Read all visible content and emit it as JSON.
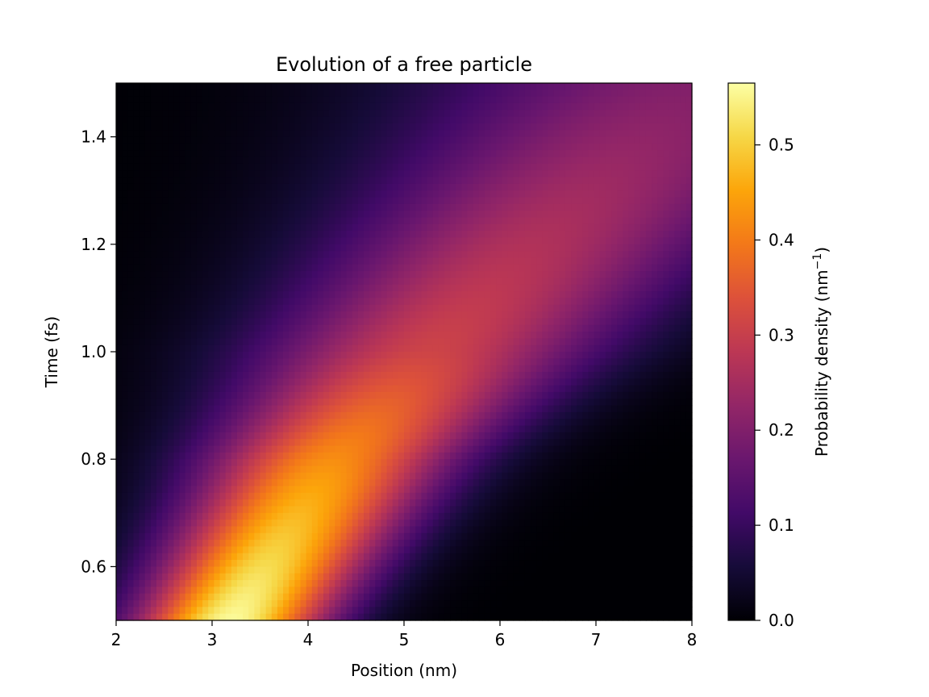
{
  "chart_data": {
    "type": "heatmap",
    "title": "Evolution of a free particle",
    "xlabel": "Position (nm)",
    "ylabel": "Time (fs)",
    "xlim": [
      2,
      8
    ],
    "ylim": [
      0.5,
      1.5
    ],
    "xticks": [
      2,
      3,
      4,
      5,
      6,
      7,
      8
    ],
    "yticks": [
      0.6,
      0.8,
      1.0,
      1.2,
      1.4
    ],
    "ytick_labels": [
      "0.6",
      "0.8",
      "1.0",
      "1.2",
      "1.4"
    ],
    "colormap": "inferno",
    "colorbar": {
      "label_text": "Probability density (nm",
      "label_superscript": "−1",
      "label_close": ")",
      "range": [
        0,
        0.565
      ],
      "ticks": [
        0.0,
        0.1,
        0.2,
        0.3,
        0.4,
        0.5
      ],
      "tick_labels": [
        "0.0",
        "0.1",
        "0.2",
        "0.3",
        "0.4",
        "0.5"
      ]
    },
    "grid": false,
    "model": {
      "description_shown": false,
      "packet_center_nm": [
        [
          0.5,
          3.2
        ],
        [
          0.8,
          4.25
        ],
        [
          1.0,
          5.25
        ],
        [
          1.2,
          6.3
        ],
        [
          1.5,
          8.0
        ]
      ],
      "peak_density": [
        [
          0.5,
          0.56
        ],
        [
          0.75,
          0.45
        ],
        [
          1.0,
          0.31
        ],
        [
          1.5,
          0.2
        ]
      ]
    }
  }
}
